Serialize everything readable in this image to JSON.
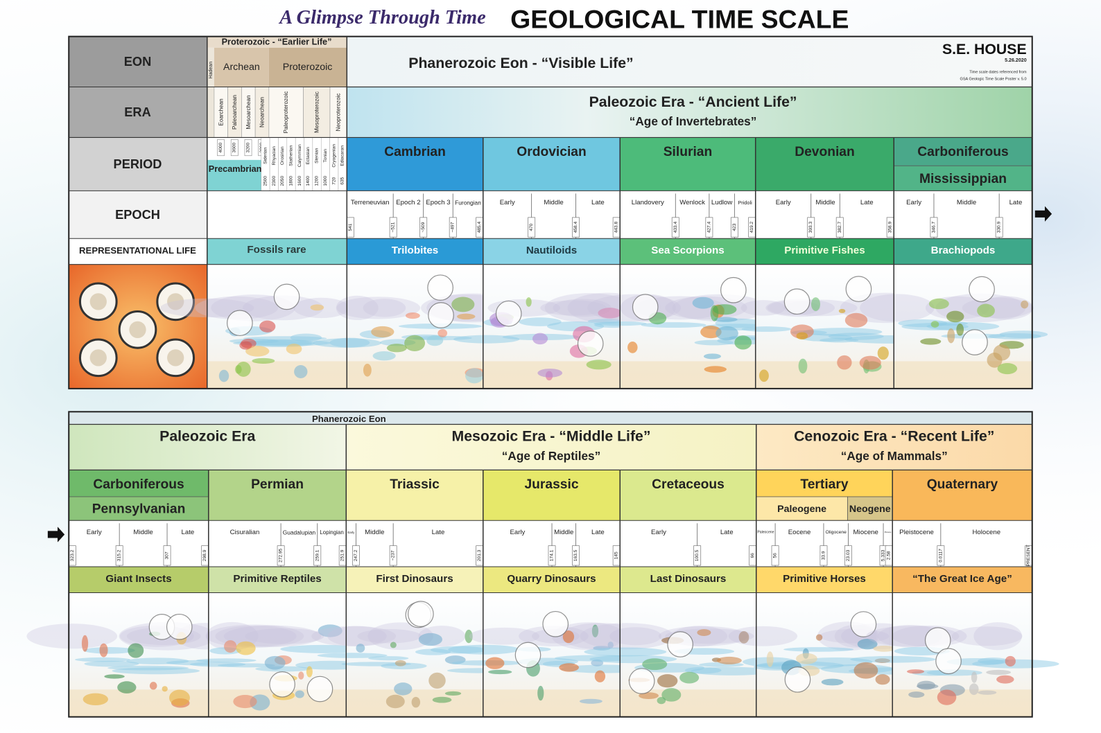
{
  "header": {
    "script_title": "A Glimpse Through Time",
    "title": "GEOLOGICAL TIME SCALE",
    "author": "S.E. HOUSE",
    "date": "5.26.2020",
    "note": [
      "Time scale dates referenced from",
      "GSA Geologic Time Scale Poster v. 5.0"
    ]
  },
  "top_panel": {
    "row_labels": [
      "EON",
      "ERA",
      "PERIOD",
      "EPOCH",
      "REPRESENTATIONAL LIFE"
    ],
    "precambrian": {
      "eon_group": "Proterozoic - “Earlier Life”",
      "hadean": "Hadean",
      "eons": [
        "Archean",
        "Proterozoic"
      ],
      "eras": [
        "Eoarchean",
        "Paleoarchean",
        "Mesoarchean",
        "Neoarchean",
        "Paleoproterozoic",
        "Mesoproterozoic",
        "Neoproterozoic"
      ],
      "era_ages": [
        "4000",
        "3600",
        "3200",
        "2800"
      ],
      "name": "Precambrian",
      "periods": [
        "Siderian",
        "Rhyacian",
        "Orosirian",
        "Statherian",
        "Calymmian",
        "Ectasian",
        "Stenian",
        "Tonian",
        "Cryogenian",
        "Ediacaran"
      ],
      "period_ages": [
        "2500",
        "2300",
        "2050",
        "1800",
        "1600",
        "1400",
        "1200",
        "1000",
        "720",
        "635"
      ],
      "life": "Fossils rare"
    },
    "eon": "Phanerozoic Eon - “Visible Life”",
    "era": {
      "name": "Paleozoic Era - “Ancient Life”",
      "subtitle": "“Age of Invertebrates”"
    },
    "periods": [
      {
        "name": "Cambrian",
        "epochs": [
          "Terreneuvian",
          "Epoch 2",
          "Epoch 3",
          "Furongian"
        ],
        "ages": [
          "541",
          "~521",
          "~509",
          "~497",
          "485.4"
        ],
        "life": "Trilobites"
      },
      {
        "name": "Ordovician",
        "epochs": [
          "Early",
          "Middle",
          "Late"
        ],
        "ages": [
          "470",
          "458.4",
          "443.8"
        ],
        "life": "Nautiloids"
      },
      {
        "name": "Silurian",
        "epochs": [
          "Llandovery",
          "Wenlock",
          "Ludlow",
          "Pridoli"
        ],
        "ages": [
          "433.4",
          "427.4",
          "423",
          "419.2"
        ],
        "life": "Sea Scorpions"
      },
      {
        "name": "Devonian",
        "epochs": [
          "Early",
          "Middle",
          "Late"
        ],
        "ages": [
          "393.3",
          "382.7",
          "358.9"
        ],
        "life": "Primitive Fishes"
      },
      {
        "name": "Carboniferous",
        "subperiods": [
          "Mississippian"
        ],
        "epochs": [
          "Early",
          "Middle",
          "Late"
        ],
        "ages": [
          "346.7",
          "330.9"
        ],
        "life": "Brachiopods"
      }
    ]
  },
  "bottom_panel": {
    "eon": "Phanerozoic Eon",
    "eras": [
      {
        "name": "Paleozoic Era"
      },
      {
        "name": "Mesozoic Era - “Middle Life”",
        "subtitle": "“Age of Reptiles”"
      },
      {
        "name": "Cenozoic Era - “Recent Life”",
        "subtitle": "“Age of Mammals”"
      }
    ],
    "periods": [
      {
        "name": "Carboniferous",
        "subperiods": [
          "Pennsylvanian"
        ],
        "epochs": [
          "Early",
          "Middle",
          "Late"
        ],
        "ages": [
          "323.2",
          "315.2",
          "307",
          "298.9"
        ],
        "life": "Giant Insects"
      },
      {
        "name": "Permian",
        "epochs": [
          "Cisuralian",
          "Guadalupian",
          "Lopingian"
        ],
        "ages": [
          "272.95",
          "259.1",
          "251.9"
        ],
        "life": "Primitive Reptiles"
      },
      {
        "name": "Triassic",
        "epochs": [
          "Early",
          "Middle",
          "Late"
        ],
        "ages": [
          "247.2",
          "~237",
          "201.3"
        ],
        "life": "First Dinosaurs"
      },
      {
        "name": "Jurassic",
        "epochs": [
          "Early",
          "Middle",
          "Late"
        ],
        "ages": [
          "174.1",
          "163.5",
          "145"
        ],
        "life": "Quarry Dinosaurs"
      },
      {
        "name": "Cretaceous",
        "epochs": [
          "Early",
          "Late"
        ],
        "ages": [
          "100.5",
          "66"
        ],
        "life": "Last Dinosaurs"
      },
      {
        "name": "Tertiary",
        "subperiods": [
          "Paleogene",
          "Neogene"
        ],
        "epochs": [
          "Paleocene",
          "Eocene",
          "Oligocene",
          "Miocene",
          "Pliocene"
        ],
        "ages": [
          "56",
          "33.9",
          "23.03",
          "5.333",
          "2.58"
        ],
        "life": "Primitive Horses"
      },
      {
        "name": "Quaternary",
        "epochs": [
          "Pleistocene",
          "Holocene"
        ],
        "ages": [
          "0.0117",
          "PRESENT"
        ],
        "life": "“The Great Ice Age”"
      }
    ]
  }
}
